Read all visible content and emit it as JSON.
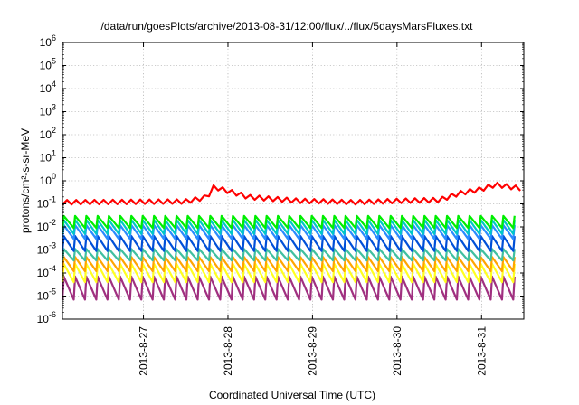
{
  "chart_data": {
    "type": "line",
    "title": "/data/run/goesPlots/archive/2013-08-31/12:00/flux/../flux/5daysMarsFluxes.txt",
    "xlabel": "Coordinated Universal Time (UTC)",
    "ylabel": "protons/cm²-s-sr-MeV",
    "y_scale": "log",
    "ylim": [
      1e-06,
      1000000.0
    ],
    "y_ticks": [
      {
        "base": "10",
        "exp": "-6",
        "value": 1e-06
      },
      {
        "base": "10",
        "exp": "-5",
        "value": 1e-05
      },
      {
        "base": "10",
        "exp": "-4",
        "value": 0.0001
      },
      {
        "base": "10",
        "exp": "-3",
        "value": 0.001
      },
      {
        "base": "10",
        "exp": "-2",
        "value": 0.01
      },
      {
        "base": "10",
        "exp": "-1",
        "value": 0.1
      },
      {
        "base": "10",
        "exp": "0",
        "value": 1
      },
      {
        "base": "10",
        "exp": "1",
        "value": 10
      },
      {
        "base": "10",
        "exp": "2",
        "value": 100
      },
      {
        "base": "10",
        "exp": "3",
        "value": 1000
      },
      {
        "base": "10",
        "exp": "4",
        "value": 10000
      },
      {
        "base": "10",
        "exp": "5",
        "value": 100000
      },
      {
        "base": "10",
        "exp": "6",
        "value": 1000000
      }
    ],
    "xlim": [
      "2013-08-26T01:00",
      "2013-08-31T12:00"
    ],
    "x_ticks": [
      "2013-8-27",
      "2013-8-28",
      "2013-8-29",
      "2013-8-30",
      "2013-8-31"
    ],
    "grid": true,
    "legend": "none",
    "series": [
      {
        "color": "#ff0000",
        "style": "steady",
        "low": 0.09,
        "high": 0.16,
        "period_hours": 2.6,
        "trend": [
          [
            "2013-08-26T01:00",
            0.12
          ],
          [
            "2013-08-27T12:00",
            0.13
          ],
          [
            "2013-08-27T18:00",
            0.2
          ],
          [
            "2013-08-27T20:00",
            0.55
          ],
          [
            "2013-08-28T06:00",
            0.2
          ],
          [
            "2013-08-28T20:00",
            0.14
          ],
          [
            "2013-08-29T12:00",
            0.12
          ],
          [
            "2013-08-30T02:00",
            0.14
          ],
          [
            "2013-08-30T12:00",
            0.15
          ],
          [
            "2013-08-30T18:00",
            0.3
          ],
          [
            "2013-08-31T00:00",
            0.45
          ],
          [
            "2013-08-31T04:00",
            0.7
          ],
          [
            "2013-08-31T12:00",
            0.45
          ]
        ]
      },
      {
        "color": "#00ee00",
        "style": "sawtooth",
        "low": 0.009,
        "high": 0.03,
        "period_hours": 3.2
      },
      {
        "color": "#00c8c8",
        "style": "sawtooth",
        "low": 0.005,
        "high": 0.02,
        "period_hours": 3.2
      },
      {
        "color": "#2a8cff",
        "style": "sawtooth",
        "low": 0.003,
        "high": 0.012,
        "period_hours": 3.2
      },
      {
        "color": "#0050d8",
        "style": "sawtooth",
        "low": 0.0009,
        "high": 0.004,
        "period_hours": 3.2
      },
      {
        "color": "#40c0a0",
        "style": "sawtooth",
        "low": 0.00035,
        "high": 0.0011,
        "period_hours": 3.2
      },
      {
        "color": "#ffa500",
        "style": "sawtooth",
        "low": 0.00012,
        "high": 0.0005,
        "period_hours": 3.2
      },
      {
        "color": "#ffff20",
        "style": "sawtooth",
        "low": 4e-05,
        "high": 0.00025,
        "period_hours": 3.2
      },
      {
        "color": "#a03080",
        "style": "sawtooth",
        "low": 7e-06,
        "high": 7e-05,
        "period_hours": 3.2
      }
    ]
  }
}
